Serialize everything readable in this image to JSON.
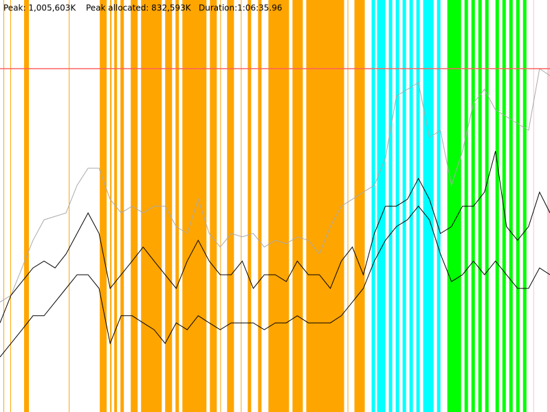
{
  "chart_data": {
    "type": "line",
    "texts": [
      "Peak: 1,005,603K",
      "Peak allocated: 832,593K",
      "Duration:1:06:35.96"
    ],
    "xlim": [
      0,
      3995.96
    ],
    "ylim": [
      0,
      1206720
    ],
    "peak": 1005603,
    "peak_color": "#ff6060",
    "x": [
      0,
      80,
      160,
      240,
      320,
      400,
      480,
      560,
      640,
      720,
      800,
      880,
      960,
      1040,
      1120,
      1200,
      1280,
      1360,
      1440,
      1520,
      1600,
      1680,
      1760,
      1840,
      1920,
      2000,
      2080,
      2160,
      2240,
      2320,
      2400,
      2480,
      2560,
      2640,
      2720,
      2800,
      2880,
      2960,
      3040,
      3120,
      3200,
      3280,
      3360,
      3440,
      3520,
      3600,
      3680,
      3760,
      3840,
      3920,
      3995.96
    ],
    "series": [
      {
        "color": "#aaaaaa",
        "values": [
          322000,
          342000,
          422000,
          503000,
          563000,
          573000,
          583000,
          664000,
          714000,
          714000,
          623000,
          583000,
          603000,
          583000,
          603000,
          603000,
          543000,
          523000,
          623000,
          523000,
          483000,
          523000,
          513000,
          523000,
          483000,
          503000,
          493000,
          513000,
          503000,
          463000,
          543000,
          603000,
          623000,
          644000,
          664000,
          744000,
          925000,
          945000,
          965000,
          804000,
          825000,
          664000,
          764000,
          905000,
          945000,
          885000,
          865000,
          845000,
          825000,
          1005603,
          985000
        ]
      },
      {
        "color": "#000000",
        "values": [
          261000,
          342000,
          382000,
          422000,
          442000,
          422000,
          463000,
          523000,
          583000,
          523000,
          362000,
          402000,
          442000,
          483000,
          442000,
          402000,
          362000,
          442000,
          503000,
          442000,
          402000,
          402000,
          442000,
          362000,
          402000,
          402000,
          382000,
          442000,
          402000,
          402000,
          362000,
          442000,
          483000,
          402000,
          523000,
          603000,
          603000,
          623000,
          684000,
          623000,
          523000,
          543000,
          603000,
          603000,
          644000,
          764000,
          543000,
          503000,
          543000,
          644000,
          583000
        ]
      },
      {
        "color": "#000000",
        "values": [
          161000,
          201000,
          241000,
          282000,
          282000,
          322000,
          362000,
          402000,
          402000,
          362000,
          201000,
          282000,
          282000,
          261000,
          241000,
          201000,
          261000,
          241000,
          282000,
          261000,
          241000,
          261000,
          261000,
          261000,
          241000,
          261000,
          261000,
          282000,
          261000,
          261000,
          261000,
          282000,
          322000,
          362000,
          442000,
          503000,
          543000,
          563000,
          603000,
          563000,
          463000,
          382000,
          402000,
          442000,
          402000,
          442000,
          402000,
          362000,
          362000,
          422000,
          402000
        ]
      }
    ],
    "band_groups": [
      {
        "color": "#ffa500",
        "bands": [
          [
            25,
            30
          ],
          [
            75,
            80
          ],
          [
            175,
            210
          ],
          [
            500,
            505
          ],
          [
            725,
            775
          ],
          [
            800,
            810
          ],
          [
            830,
            850
          ],
          [
            875,
            900
          ],
          [
            950,
            1000
          ],
          [
            1025,
            1175
          ],
          [
            1200,
            1250
          ],
          [
            1275,
            1300
          ],
          [
            1325,
            1500
          ],
          [
            1525,
            1575
          ],
          [
            1600,
            1605
          ],
          [
            1650,
            1700
          ],
          [
            1750,
            1755
          ],
          [
            1800,
            1825
          ],
          [
            1875,
            1900
          ],
          [
            1950,
            2100
          ],
          [
            2125,
            2200
          ],
          [
            2225,
            2500
          ],
          [
            2525,
            2530
          ],
          [
            2575,
            2650
          ]
        ]
      },
      {
        "color": "#00ffff",
        "bands": [
          [
            2700,
            2725
          ],
          [
            2740,
            2800
          ],
          [
            2825,
            2850
          ],
          [
            2875,
            2900
          ],
          [
            2925,
            2950
          ],
          [
            2975,
            3000
          ],
          [
            3025,
            3050
          ],
          [
            3075,
            3150
          ],
          [
            3175,
            3200
          ]
        ]
      },
      {
        "color": "#00ff00",
        "bands": [
          [
            3250,
            3350
          ],
          [
            3375,
            3400
          ],
          [
            3425,
            3450
          ],
          [
            3475,
            3500
          ],
          [
            3525,
            3550
          ],
          [
            3600,
            3625
          ],
          [
            3650,
            3675
          ],
          [
            3700,
            3725
          ],
          [
            3750,
            3775
          ],
          [
            3800,
            3825
          ]
        ]
      },
      {
        "color": "#ffc0cb",
        "bands": [
          [
            3875,
            3880
          ],
          [
            3975,
            3995
          ]
        ]
      }
    ]
  }
}
